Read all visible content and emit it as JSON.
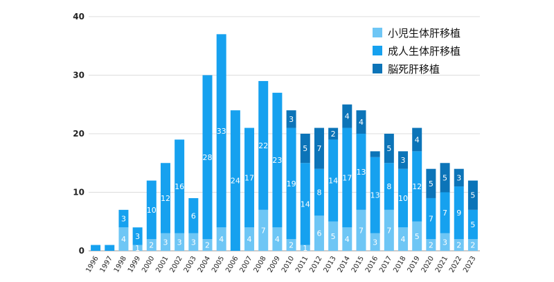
{
  "chart_data": {
    "type": "bar",
    "stacked": true,
    "title": "",
    "xlabel": "",
    "ylabel": "",
    "ylim": [
      0,
      40
    ],
    "yticks": [
      0,
      10,
      20,
      30,
      40
    ],
    "grid": true,
    "legend_position": "top-right",
    "categories": [
      "1996",
      "1997",
      "1998",
      "1999",
      "2000",
      "2001",
      "2002",
      "2003",
      "2004",
      "2005",
      "2006",
      "2007",
      "2008",
      "2009",
      "2010",
      "2011",
      "2012",
      "2013",
      "2014",
      "2015",
      "2016",
      "2017",
      "2018",
      "2019",
      "2020",
      "2021",
      "2022",
      "2023"
    ],
    "series": [
      {
        "name": "小児生体肝移植",
        "color": "#6EC6F5",
        "values": [
          0,
          0,
          4,
          1,
          2,
          3,
          3,
          3,
          2,
          4,
          0,
          4,
          7,
          4,
          2,
          1,
          6,
          5,
          4,
          7,
          3,
          7,
          4,
          5,
          2,
          3,
          2,
          2
        ]
      },
      {
        "name": "成人生体肝移植",
        "color": "#16A1EF",
        "values": [
          1,
          1,
          3,
          3,
          10,
          12,
          16,
          6,
          28,
          33,
          24,
          17,
          22,
          23,
          19,
          14,
          8,
          14,
          17,
          13,
          13,
          8,
          10,
          12,
          7,
          7,
          9,
          5
        ]
      },
      {
        "name": "脳死肝移植",
        "color": "#0C74B8",
        "values": [
          0,
          0,
          0,
          0,
          0,
          0,
          0,
          0,
          0,
          0,
          0,
          0,
          0,
          0,
          3,
          5,
          7,
          2,
          4,
          4,
          1,
          5,
          3,
          4,
          5,
          5,
          3,
          5
        ]
      }
    ],
    "segment_labels": [
      [
        null,
        null,
        "4",
        "1",
        "2",
        "3",
        "3",
        "3",
        "2",
        "4",
        null,
        "4",
        "7",
        "4",
        "2",
        "1",
        "6",
        "5",
        "4",
        "7",
        "3",
        "7",
        "4",
        "5",
        "2",
        "3",
        "2",
        "2"
      ],
      [
        null,
        null,
        "3",
        "3",
        "10",
        "12",
        "16",
        "6",
        "28",
        "33",
        "24",
        "17",
        "22",
        "23",
        "19",
        "14",
        "8",
        "14",
        "17",
        "13",
        "13",
        "8",
        "10",
        "12",
        "7",
        "7",
        "9",
        "5"
      ],
      [
        null,
        null,
        null,
        null,
        null,
        null,
        null,
        null,
        null,
        null,
        null,
        null,
        null,
        null,
        "3",
        "5",
        "7",
        "2",
        "4",
        "4",
        null,
        "5",
        "3",
        "4",
        "5",
        "5",
        "3",
        "5"
      ]
    ]
  }
}
